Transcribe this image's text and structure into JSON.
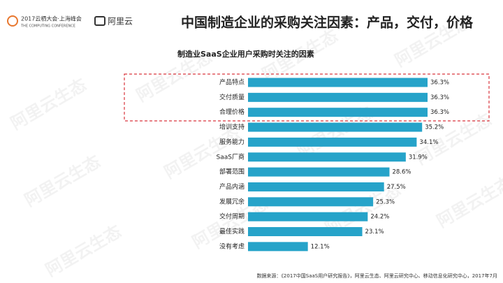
{
  "header": {
    "event": "2017云栖大会·上海峰会",
    "event_en": "THE COMPUTING CONFERENCE",
    "brand": "阿里云"
  },
  "watermark": "阿里云生态",
  "chart_data": {
    "type": "bar",
    "orientation": "horizontal",
    "title": "中国制造企业的采购关注因素：产品，交付，价格",
    "subtitle": "制造业SaaS企业用户采购时关注的因素",
    "categories": [
      "产品特点",
      "交付质量",
      "合理价格",
      "培训支持",
      "服务能力",
      "SaaS厂商",
      "部署范围",
      "产品内涵",
      "发展冗余",
      "交付周期",
      "最佳实践",
      "没有考虑"
    ],
    "values": [
      36.3,
      36.3,
      36.3,
      35.2,
      34.1,
      31.9,
      28.6,
      27.5,
      25.3,
      24.2,
      23.1,
      12.1
    ],
    "value_labels": [
      "36.3%",
      "36.3%",
      "36.3%",
      "35.2%",
      "34.1%",
      "31.9%",
      "28.6%",
      "27.5%",
      "25.3%",
      "24.2%",
      "23.1%",
      "12.1%"
    ],
    "color": "#26a3c9"
  },
  "source": "数据来源：《2017中国SaaS用户研究报告》，阿里云生态、阿里云研究中心、移动信息化研究中心，2017年7月"
}
